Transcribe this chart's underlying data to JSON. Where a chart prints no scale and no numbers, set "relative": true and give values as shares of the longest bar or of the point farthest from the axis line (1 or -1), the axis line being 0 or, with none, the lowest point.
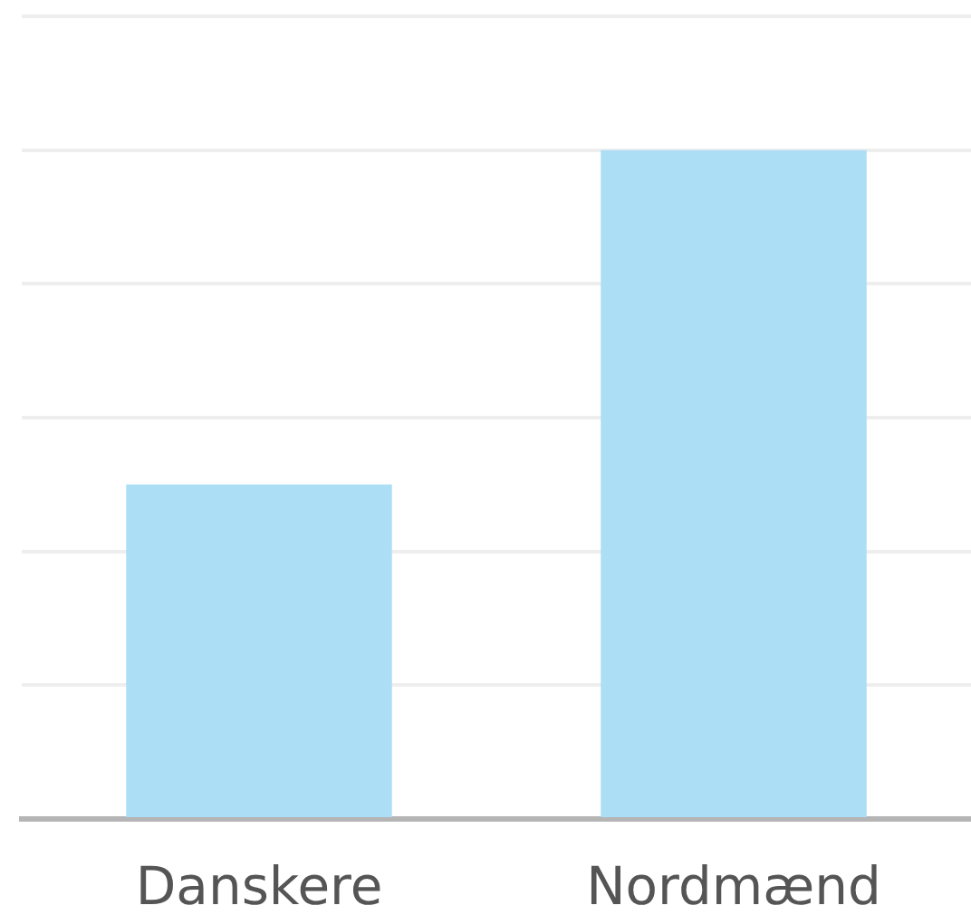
{
  "chart_data": {
    "type": "bar",
    "categories": [
      "Danskere",
      "Nordmænd"
    ],
    "values": [
      0.5,
      1
    ],
    "color": "#acdef5",
    "relative": true,
    "grid": "y"
  }
}
